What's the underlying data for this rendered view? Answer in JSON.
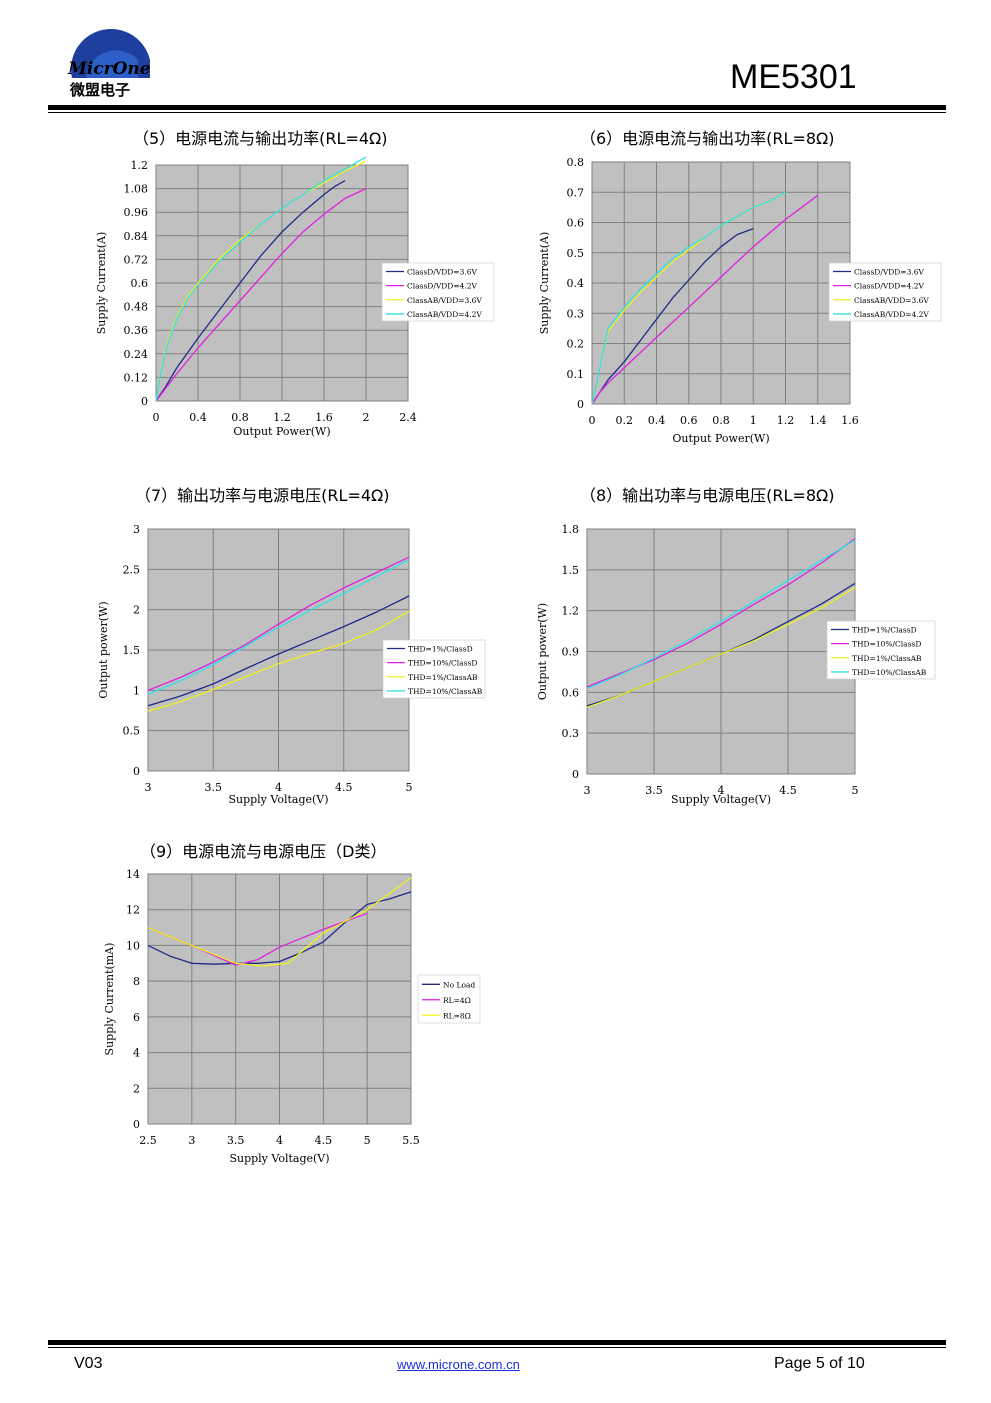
{
  "header": {
    "logo_text": "MicrOne",
    "logo_sub": "微盟电子",
    "part_number": "ME5301"
  },
  "footer": {
    "version": "V03",
    "url": "www.microne.com.cn",
    "page": "Page 5 of 10"
  },
  "colors": {
    "plot_bg": "#c0c0c0",
    "grid": "#808080",
    "classD_low": "#1e2a86",
    "classD_high": "#e020e0",
    "classAB_low": "#f0f020",
    "classAB_high": "#30e0e0"
  },
  "titles": {
    "c5": "（5）电源电流与输出功率(RL=4Ω)",
    "c6": "（6）电源电流与输出功率(RL=8Ω)",
    "c7": "（7）输出功率与电源电压(RL=4Ω)",
    "c8": "（8）输出功率与电源电压(RL=8Ω)",
    "c9": "（9）电源电流与电源电压（D类）"
  },
  "chart_data": [
    {
      "id": "c5",
      "type": "line",
      "xlabel": "Output Power(W)",
      "ylabel": "Supply Current(A)",
      "xlim": [
        0,
        2.4
      ],
      "ylim": [
        0,
        1.2
      ],
      "xticks": [
        "0",
        "0.4",
        "0.8",
        "1.2",
        "1.6",
        "2",
        "2.4"
      ],
      "yticks": [
        "0",
        "0.12",
        "0.24",
        "0.36",
        "0.48",
        "0.6",
        "0.72",
        "0.84",
        "0.96",
        "1.08",
        "1.2"
      ],
      "legend_position": "right",
      "series": [
        {
          "name": "ClassD/VDD=3.6V",
          "color": "#1e2a86",
          "x": [
            0,
            0.1,
            0.2,
            0.4,
            0.6,
            0.8,
            1.0,
            1.2,
            1.4,
            1.6,
            1.7,
            1.8
          ],
          "y": [
            0,
            0.08,
            0.17,
            0.32,
            0.46,
            0.6,
            0.74,
            0.86,
            0.96,
            1.05,
            1.09,
            1.12
          ]
        },
        {
          "name": "ClassD/VDD=4.2V",
          "color": "#e020e0",
          "x": [
            0,
            0.1,
            0.2,
            0.4,
            0.6,
            0.8,
            1.0,
            1.2,
            1.4,
            1.6,
            1.8,
            2.0
          ],
          "y": [
            0,
            0.07,
            0.14,
            0.27,
            0.39,
            0.51,
            0.63,
            0.75,
            0.86,
            0.95,
            1.03,
            1.08
          ]
        },
        {
          "name": "ClassAB/VDD=3.6V",
          "color": "#f0f020",
          "x": [
            0,
            0.05,
            0.1,
            0.2,
            0.3,
            0.4,
            0.6,
            0.8,
            1.0,
            1.2,
            1.4,
            1.6,
            1.8,
            2.0
          ],
          "y": [
            0,
            0.17,
            0.28,
            0.43,
            0.53,
            0.6,
            0.72,
            0.82,
            0.9,
            0.98,
            1.05,
            1.11,
            1.17,
            1.22
          ]
        },
        {
          "name": "ClassAB/VDD=4.2V",
          "color": "#30e0e0",
          "x": [
            0,
            0.05,
            0.1,
            0.2,
            0.3,
            0.4,
            0.6,
            0.8,
            1.0,
            1.2,
            1.4,
            1.6,
            1.8,
            2.0
          ],
          "y": [
            0,
            0.16,
            0.27,
            0.42,
            0.52,
            0.59,
            0.71,
            0.81,
            0.9,
            0.98,
            1.05,
            1.12,
            1.18,
            1.24
          ]
        }
      ]
    },
    {
      "id": "c6",
      "type": "line",
      "xlabel": "Output Power(W)",
      "ylabel": "Supply Current(A)",
      "xlim": [
        0,
        1.6
      ],
      "ylim": [
        0,
        0.8
      ],
      "xticks": [
        "0",
        "0.2",
        "0.4",
        "0.6",
        "0.8",
        "1",
        "1.2",
        "1.4",
        "1.6"
      ],
      "yticks": [
        "0",
        "0.1",
        "0.2",
        "0.3",
        "0.4",
        "0.5",
        "0.6",
        "0.7",
        "0.8"
      ],
      "legend_position": "right",
      "series": [
        {
          "name": "ClassD/VDD=3.6V",
          "color": "#1e2a86",
          "x": [
            0,
            0.05,
            0.1,
            0.2,
            0.3,
            0.4,
            0.5,
            0.6,
            0.7,
            0.8,
            0.9,
            1.0
          ],
          "y": [
            0,
            0.04,
            0.08,
            0.14,
            0.21,
            0.28,
            0.35,
            0.41,
            0.47,
            0.52,
            0.56,
            0.58
          ]
        },
        {
          "name": "ClassD/VDD=4.2V",
          "color": "#e020e0",
          "x": [
            0,
            0.05,
            0.1,
            0.2,
            0.4,
            0.6,
            0.8,
            1.0,
            1.2,
            1.4
          ],
          "y": [
            0,
            0.04,
            0.07,
            0.12,
            0.22,
            0.32,
            0.42,
            0.52,
            0.61,
            0.69
          ]
        },
        {
          "name": "ClassAB/VDD=3.6V",
          "color": "#f0f020",
          "x": [
            0,
            0.03,
            0.06,
            0.1,
            0.2,
            0.3,
            0.4,
            0.5,
            0.6,
            0.7,
            0.8,
            0.9,
            1.0,
            1.1,
            1.2
          ],
          "y": [
            0,
            0.07,
            0.15,
            0.24,
            0.31,
            0.37,
            0.42,
            0.47,
            0.51,
            0.55,
            0.59,
            0.62,
            0.65,
            0.67,
            0.7
          ]
        },
        {
          "name": "ClassAB/VDD=4.2V",
          "color": "#30e0e0",
          "x": [
            0,
            0.03,
            0.06,
            0.1,
            0.2,
            0.3,
            0.4,
            0.5,
            0.6,
            0.7,
            0.8,
            0.9,
            1.0,
            1.1,
            1.2
          ],
          "y": [
            0,
            0.07,
            0.15,
            0.25,
            0.32,
            0.38,
            0.43,
            0.48,
            0.52,
            0.55,
            0.59,
            0.62,
            0.65,
            0.67,
            0.7
          ]
        }
      ]
    },
    {
      "id": "c7",
      "type": "line",
      "xlabel": "Supply Voltage(V)",
      "ylabel": "Output power(W)",
      "xlim": [
        3,
        5
      ],
      "ylim": [
        0,
        3
      ],
      "xticks": [
        "3",
        "3.5",
        "4",
        "4.5",
        "5"
      ],
      "yticks": [
        "0",
        "0.5",
        "1",
        "1.5",
        "2",
        "2.5",
        "3"
      ],
      "legend_position": "right",
      "series": [
        {
          "name": "THD=1%/ClassD",
          "color": "#1e2a86",
          "x": [
            3,
            3.25,
            3.5,
            3.75,
            4,
            4.25,
            4.5,
            4.75,
            5
          ],
          "y": [
            0.81,
            0.93,
            1.08,
            1.27,
            1.45,
            1.62,
            1.79,
            1.97,
            2.17
          ]
        },
        {
          "name": "THD=10%/ClassD",
          "color": "#e020e0",
          "x": [
            3,
            3.25,
            3.5,
            3.75,
            4,
            4.25,
            4.5,
            4.75,
            5
          ],
          "y": [
            1.0,
            1.16,
            1.35,
            1.57,
            1.82,
            2.06,
            2.27,
            2.46,
            2.65
          ]
        },
        {
          "name": "THD=1%/ClassAB",
          "color": "#f0f020",
          "x": [
            3,
            3.25,
            3.5,
            3.75,
            4,
            4.25,
            4.5,
            4.75,
            5
          ],
          "y": [
            0.74,
            0.86,
            1.01,
            1.17,
            1.33,
            1.46,
            1.58,
            1.75,
            1.98
          ]
        },
        {
          "name": "THD=10%/ClassAB",
          "color": "#30e0e0",
          "x": [
            3,
            3.25,
            3.5,
            3.75,
            4,
            4.25,
            4.5,
            4.75,
            5
          ],
          "y": [
            0.95,
            1.12,
            1.32,
            1.55,
            1.78,
            2.0,
            2.2,
            2.41,
            2.62
          ]
        }
      ]
    },
    {
      "id": "c8",
      "type": "line",
      "xlabel": "Supply Voltage(V)",
      "ylabel": "Output power(W)",
      "xlim": [
        3,
        5
      ],
      "ylim": [
        0,
        1.8
      ],
      "xticks": [
        "3",
        "3.5",
        "4",
        "4.5",
        "5"
      ],
      "yticks": [
        "0",
        "0.3",
        "0.6",
        "0.9",
        "1.2",
        "1.5",
        "1.8"
      ],
      "legend_position": "right",
      "series": [
        {
          "name": "THD=1%/ClassD",
          "color": "#1e2a86",
          "x": [
            3,
            3.25,
            3.5,
            3.75,
            4,
            4.25,
            4.5,
            4.75,
            5
          ],
          "y": [
            0.5,
            0.58,
            0.68,
            0.78,
            0.88,
            0.99,
            1.12,
            1.25,
            1.4
          ]
        },
        {
          "name": "THD=10%/ClassD",
          "color": "#e020e0",
          "x": [
            3,
            3.25,
            3.5,
            3.75,
            4,
            4.25,
            4.5,
            4.75,
            5
          ],
          "y": [
            0.64,
            0.74,
            0.84,
            0.96,
            1.1,
            1.25,
            1.39,
            1.55,
            1.73
          ]
        },
        {
          "name": "THD=1%/ClassAB",
          "color": "#f0f020",
          "x": [
            3,
            3.25,
            3.5,
            3.75,
            4,
            4.25,
            4.5,
            4.75,
            5
          ],
          "y": [
            0.49,
            0.58,
            0.68,
            0.78,
            0.88,
            0.98,
            1.1,
            1.22,
            1.37
          ]
        },
        {
          "name": "THD=10%/ClassAB",
          "color": "#30e0e0",
          "x": [
            3,
            3.25,
            3.5,
            3.75,
            4,
            4.25,
            4.5,
            4.75,
            5
          ],
          "y": [
            0.63,
            0.73,
            0.85,
            0.98,
            1.12,
            1.27,
            1.42,
            1.57,
            1.72
          ]
        }
      ]
    },
    {
      "id": "c9",
      "type": "line",
      "xlabel": "Supply Voltage(V)",
      "ylabel": "Supply Current(mA)",
      "xlim": [
        2.5,
        5.5
      ],
      "ylim": [
        0,
        14
      ],
      "xticks": [
        "2.5",
        "3",
        "3.5",
        "4",
        "4.5",
        "5",
        "5.5"
      ],
      "yticks": [
        "0",
        "2",
        "4",
        "6",
        "8",
        "10",
        "12",
        "14"
      ],
      "legend_position": "right",
      "series": [
        {
          "name": "No Load",
          "color": "#1e2a86",
          "x": [
            2.5,
            2.75,
            3.0,
            3.25,
            3.5,
            3.75,
            4.0,
            4.25,
            4.5,
            4.75,
            5.0,
            5.25,
            5.5
          ],
          "y": [
            10.0,
            9.4,
            9.0,
            8.95,
            9.0,
            9.0,
            9.1,
            9.6,
            10.2,
            11.3,
            12.3,
            12.6,
            13.0
          ]
        },
        {
          "name": "RL=4Ω",
          "color": "#e020e0",
          "x": [
            2.5,
            3.0,
            3.5,
            3.75,
            4.0,
            4.5,
            5.0
          ],
          "y": [
            11.0,
            10.0,
            8.9,
            9.2,
            9.9,
            10.9,
            11.8
          ]
        },
        {
          "name": "RL=8Ω",
          "color": "#f0f020",
          "x": [
            2.5,
            3.0,
            3.5,
            3.8,
            4.1,
            4.5,
            5.0,
            5.5
          ],
          "y": [
            11.0,
            10.0,
            9.0,
            8.85,
            9.0,
            10.7,
            12.0,
            13.8
          ]
        }
      ]
    }
  ]
}
